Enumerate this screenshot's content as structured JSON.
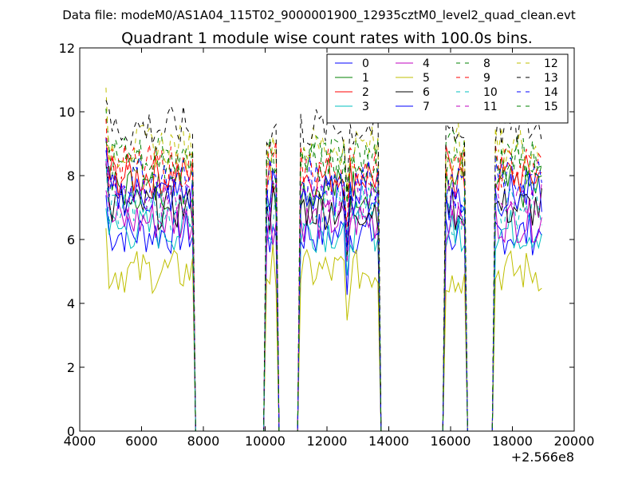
{
  "page": {
    "suptitle": "Data file: modeM0/AS1A04_115T02_9000001900_12935cztM0_level2_quad_clean.evt"
  },
  "chart_data": {
    "type": "line",
    "title": "Quadrant 1 module wise count rates with 100.0s bins.",
    "xlabel": "",
    "ylabel": "",
    "xlim": [
      4000,
      20000
    ],
    "ylim": [
      0,
      12
    ],
    "x_offset_label": "+2.566e8",
    "x_ticks": [
      4000,
      6000,
      8000,
      10000,
      12000,
      14000,
      16000,
      18000,
      20000
    ],
    "y_ticks": [
      0,
      2,
      4,
      6,
      8,
      10,
      12
    ],
    "grid": false,
    "legend_position": "upper-right",
    "legend_columns": 4,
    "segments": [
      {
        "x0": 4850,
        "x1": 7650
      },
      {
        "x0": 10050,
        "x1": 10350
      },
      {
        "x0": 11150,
        "x1": 13650
      },
      {
        "x0": 15850,
        "x1": 16450
      },
      {
        "x0": 17450,
        "x1": 18950
      }
    ],
    "series": [
      {
        "name": "0",
        "color": "#0000ff",
        "dash": "solid",
        "level": 6.2
      },
      {
        "name": "1",
        "color": "#008000",
        "dash": "solid",
        "level": 7.6
      },
      {
        "name": "2",
        "color": "#ff0000",
        "dash": "solid",
        "level": 8.0
      },
      {
        "name": "3",
        "color": "#00bfbf",
        "dash": "solid",
        "level": 6.3
      },
      {
        "name": "4",
        "color": "#bf00bf",
        "dash": "solid",
        "level": 6.6
      },
      {
        "name": "5",
        "color": "#bfbf00",
        "dash": "solid",
        "level": 5.0
      },
      {
        "name": "6",
        "color": "#000000",
        "dash": "solid",
        "level": 7.0
      },
      {
        "name": "7",
        "color": "#0000ff",
        "dash": "solid",
        "level": 7.4
      },
      {
        "name": "8",
        "color": "#008000",
        "dash": "dashed",
        "level": 8.6
      },
      {
        "name": "9",
        "color": "#ff0000",
        "dash": "dashed",
        "level": 8.3
      },
      {
        "name": "10",
        "color": "#00bfbf",
        "dash": "dashed",
        "level": 7.0
      },
      {
        "name": "11",
        "color": "#bf00bf",
        "dash": "dashed",
        "level": 7.3
      },
      {
        "name": "12",
        "color": "#bfbf00",
        "dash": "dashed",
        "level": 8.9
      },
      {
        "name": "13",
        "color": "#000000",
        "dash": "dashed",
        "level": 9.5
      },
      {
        "name": "14",
        "color": "#0000ff",
        "dash": "dashed",
        "level": 7.9
      },
      {
        "name": "15",
        "color": "#008000",
        "dash": "dashed",
        "level": 8.4
      }
    ]
  }
}
